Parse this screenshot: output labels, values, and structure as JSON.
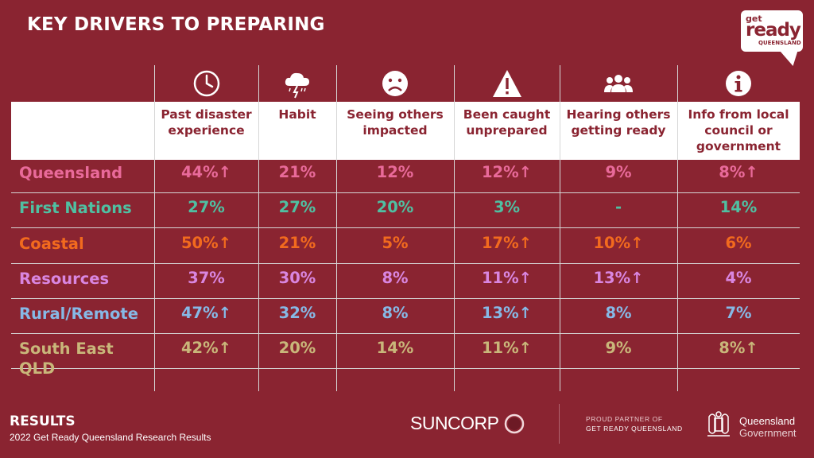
{
  "title": "KEY DRIVERS TO PREPARING",
  "logo": {
    "line1": "get",
    "line2": "ready",
    "line3": "QUEENSLAND"
  },
  "columns": [
    {
      "label": "Past disaster experience",
      "icon": "clock-icon"
    },
    {
      "label": "Habit",
      "icon": "storm-cloud-icon"
    },
    {
      "label": "Seeing others impacted",
      "icon": "sad-face-icon"
    },
    {
      "label": "Been caught unprepared",
      "icon": "warning-icon"
    },
    {
      "label": "Hearing others getting ready",
      "icon": "people-group-icon"
    },
    {
      "label": "Info from local council or government",
      "icon": "info-icon"
    }
  ],
  "rows": [
    {
      "label": "Queensland",
      "color": "#e96a9a",
      "values": [
        "44%↑",
        "21%",
        "12%",
        "12%↑",
        "9%",
        "8%↑"
      ]
    },
    {
      "label": "First Nations",
      "color": "#4fc0a2",
      "values": [
        "27%",
        "27%",
        "20%",
        "3%",
        "-",
        "14%"
      ]
    },
    {
      "label": "Coastal",
      "color": "#f26a1e",
      "values": [
        "50%↑",
        "21%",
        "5%",
        "17%↑",
        "10%↑",
        "6%"
      ]
    },
    {
      "label": "Resources",
      "color": "#d986e0",
      "values": [
        "37%",
        "30%",
        "8%",
        "11%↑",
        "13%↑",
        "4%"
      ]
    },
    {
      "label": "Rural/Remote",
      "color": "#86b9e6",
      "values": [
        "47%↑",
        "32%",
        "8%",
        "13%↑",
        "8%",
        "7%"
      ]
    },
    {
      "label": "South East QLD",
      "color": "#c9b77a",
      "values": [
        "42%↑",
        "20%",
        "14%",
        "11%↑",
        "9%",
        "8%↑"
      ]
    }
  ],
  "footer": {
    "title": "RESULTS",
    "subtitle": "2022 Get Ready Queensland Research Results",
    "sponsor": "SUNCORP",
    "partner_line1": "PROUD PARTNER OF",
    "partner_line2": "GET READY QUEENSLAND",
    "gov_line1": "Queensland",
    "gov_line2": "Government"
  }
}
